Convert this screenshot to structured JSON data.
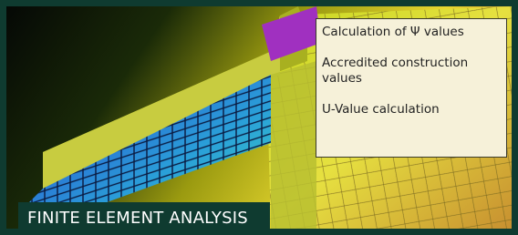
{
  "info_box": {
    "items": [
      "Calculation of Ψ values",
      "Accredited construction values",
      "U-Value calculation"
    ]
  },
  "caption": "FINITE ELEMENT ANALYSIS"
}
